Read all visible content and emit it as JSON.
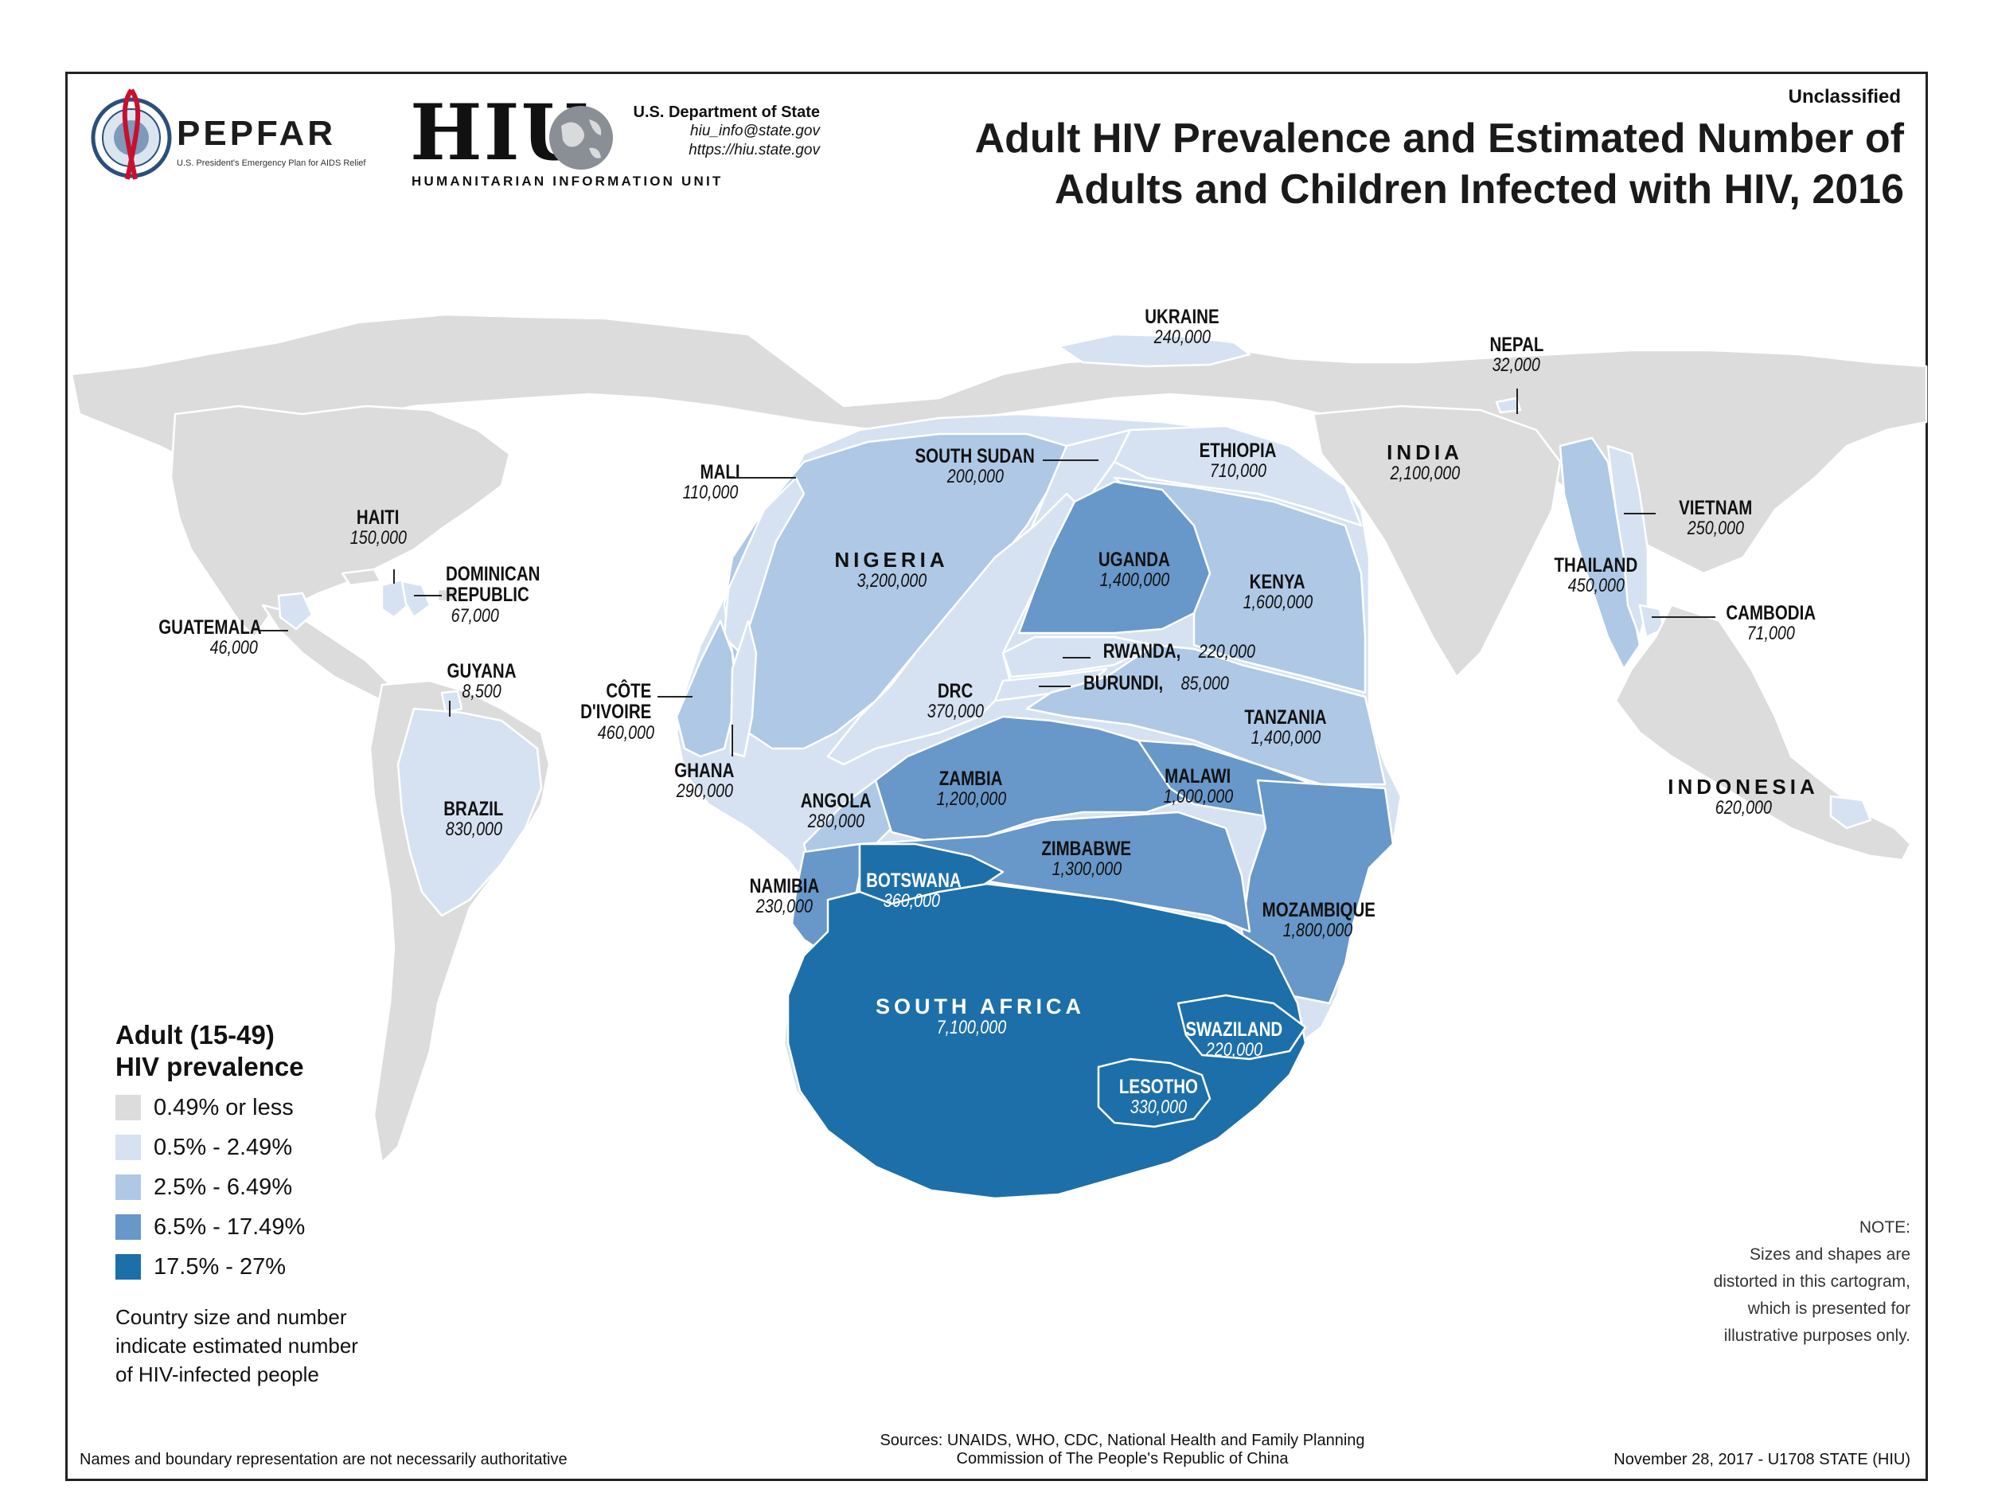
{
  "header": {
    "pepfar_word": "PEPFAR",
    "pepfar_subtitle": "U.S. President's Emergency Plan for AIDS Relief",
    "hiu_word": "HIU",
    "hiu_unit": "HUMANITARIAN INFORMATION UNIT",
    "dept": "U.S. Department of State",
    "email": "hiu_info@state.gov",
    "website": "https://hiu.state.gov",
    "classification": "Unclassified",
    "title_line1": "Adult HIV Prevalence and Estimated Number of",
    "title_line2": "Adults and Children Infected with HIV, 2016"
  },
  "colors": {
    "c0": "#dcdcdc",
    "c1": "#d6e2f1",
    "c2": "#aec8e6",
    "c3": "#6897c9",
    "c4": "#1d6fa9"
  },
  "countries": [
    {
      "name": "UKRAINE",
      "value": "240,000"
    },
    {
      "name": "NEPAL",
      "value": "32,000"
    },
    {
      "name": "MALI",
      "value": "110,000"
    },
    {
      "name": "SOUTH SUDAN",
      "value": "200,000"
    },
    {
      "name": "ETHIOPIA",
      "value": "710,000"
    },
    {
      "name": "INDIA",
      "value": "2,100,000"
    },
    {
      "name": "VIETNAM",
      "value": "250,000"
    },
    {
      "name": "HAITI",
      "value": "150,000"
    },
    {
      "name": "NIGERIA",
      "value": "3,200,000"
    },
    {
      "name": "UGANDA",
      "value": "1,400,000"
    },
    {
      "name": "KENYA",
      "value": "1,600,000"
    },
    {
      "name": "THAILAND",
      "value": "450,000"
    },
    {
      "name": "DOMINICAN REPUBLIC",
      "value": "67,000"
    },
    {
      "name": "GUATEMALA",
      "value": "46,000"
    },
    {
      "name": "CAMBODIA",
      "value": "71,000"
    },
    {
      "name": "RWANDA,",
      "value": "220,000"
    },
    {
      "name": "BURUNDI,",
      "value": "85,000"
    },
    {
      "name": "GUYANA",
      "value": "8,500"
    },
    {
      "name": "CÔTE D'IVOIRE",
      "value": "460,000"
    },
    {
      "name": "DRC",
      "value": "370,000"
    },
    {
      "name": "TANZANIA",
      "value": "1,400,000"
    },
    {
      "name": "GHANA",
      "value": "290,000"
    },
    {
      "name": "ANGOLA",
      "value": "280,000"
    },
    {
      "name": "ZAMBIA",
      "value": "1,200,000"
    },
    {
      "name": "MALAWI",
      "value": "1,000,000"
    },
    {
      "name": "BRAZIL",
      "value": "830,000"
    },
    {
      "name": "INDONESIA",
      "value": "620,000"
    },
    {
      "name": "ZIMBABWE",
      "value": "1,300,000"
    },
    {
      "name": "NAMIBIA",
      "value": "230,000"
    },
    {
      "name": "BOTSWANA",
      "value": "360,000"
    },
    {
      "name": "MOZAMBIQUE",
      "value": "1,800,000"
    },
    {
      "name": "SOUTH AFRICA",
      "value": "7,100,000"
    },
    {
      "name": "SWAZILAND",
      "value": "220,000"
    },
    {
      "name": "LESOTHO",
      "value": "330,000"
    }
  ],
  "legend": {
    "title_line1": "Adult (15-49)",
    "title_line2": "HIV prevalence",
    "items": [
      {
        "label": "0.49% or less",
        "color": "#dcdcdc"
      },
      {
        "label": "0.5% - 2.49%",
        "color": "#d6e2f1"
      },
      {
        "label": "2.5% - 6.49%",
        "color": "#aec8e6"
      },
      {
        "label": "6.5% - 17.49%",
        "color": "#6897c9"
      },
      {
        "label": "17.5% - 27%",
        "color": "#1d6fa9"
      }
    ],
    "note": "Country size and number indicate estimated number of HIV-infected people"
  },
  "note_right": {
    "heading": "NOTE:",
    "text": "Sizes and shapes are distorted in this cartogram, which is presented for illustrative purposes only."
  },
  "footer": {
    "disclaimer": "Names and boundary representation are not necessarily authoritative",
    "sources_line1": "Sources: UNAIDS, WHO, CDC, National Health and Family Planning",
    "sources_line2": "Commission of The People's Republic of China",
    "date_id": "November 28, 2017 - U1708 STATE (HIU)"
  }
}
